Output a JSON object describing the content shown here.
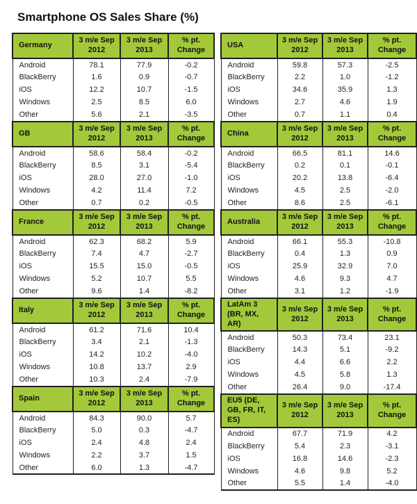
{
  "colors": {
    "header_green": "#a3c93a",
    "border": "#1f1f1f",
    "text": "#222222",
    "background": "#ffffff"
  },
  "chart_data": {
    "type": "table",
    "title": "Smartphone OS Sales Share (%)",
    "column_headers": [
      "3 m/e Sep\n2012",
      "3 m/e Sep\n2013",
      "% pt.\nChange"
    ],
    "row_labels": [
      "Android",
      "BlackBerry",
      "iOS",
      "Windows",
      "Other"
    ],
    "layout_note": "ten region tables, two columns: left = Germany/GB/France/Italy/Spain, right = USA/China/Australia/LatAm 3/EU5",
    "tables": [
      {
        "region": "Germany",
        "side": "left",
        "values": [
          [
            "78.1",
            "77.9",
            "-0.2"
          ],
          [
            "1.6",
            "0.9",
            "-0.7"
          ],
          [
            "12.2",
            "10.7",
            "-1.5"
          ],
          [
            "2.5",
            "8.5",
            "6.0"
          ],
          [
            "5.6",
            "2.1",
            "-3.5"
          ]
        ]
      },
      {
        "region": "GB",
        "side": "left",
        "values": [
          [
            "58.6",
            "58.4",
            "-0.2"
          ],
          [
            "8.5",
            "3.1",
            "-5.4"
          ],
          [
            "28.0",
            "27.0",
            "-1.0"
          ],
          [
            "4.2",
            "11.4",
            "7.2"
          ],
          [
            "0.7",
            "0.2",
            "-0.5"
          ]
        ]
      },
      {
        "region": "France",
        "side": "left",
        "values": [
          [
            "62.3",
            "68.2",
            "5.9"
          ],
          [
            "7.4",
            "4.7",
            "-2.7"
          ],
          [
            "15.5",
            "15.0",
            "-0.5"
          ],
          [
            "5.2",
            "10.7",
            "5.5"
          ],
          [
            "9.6",
            "1.4",
            "-8.2"
          ]
        ]
      },
      {
        "region": "Italy",
        "side": "left",
        "values": [
          [
            "61.2",
            "71.6",
            "10.4"
          ],
          [
            "3.4",
            "2.1",
            "-1.3"
          ],
          [
            "14.2",
            "10.2",
            "-4.0"
          ],
          [
            "10.8",
            "13.7",
            "2.9"
          ],
          [
            "10.3",
            "2.4",
            "-7.9"
          ]
        ]
      },
      {
        "region": "Spain",
        "side": "left",
        "values": [
          [
            "84.3",
            "90.0",
            "5.7"
          ],
          [
            "5.0",
            "0.3",
            "-4.7"
          ],
          [
            "2.4",
            "4.8",
            "2.4"
          ],
          [
            "2.2",
            "3.7",
            "1.5"
          ],
          [
            "6.0",
            "1.3",
            "-4.7"
          ]
        ]
      },
      {
        "region": "USA",
        "side": "right",
        "values": [
          [
            "59.8",
            "57.3",
            "-2.5"
          ],
          [
            "2.2",
            "1.0",
            "-1.2"
          ],
          [
            "34.6",
            "35.9",
            "1.3"
          ],
          [
            "2.7",
            "4.6",
            "1.9"
          ],
          [
            "0.7",
            "1.1",
            "0.4"
          ]
        ]
      },
      {
        "region": "China",
        "side": "right",
        "values": [
          [
            "66.5",
            "81.1",
            "14.6"
          ],
          [
            "0.2",
            "0.1",
            "-0.1"
          ],
          [
            "20.2",
            "13.8",
            "-6.4"
          ],
          [
            "4.5",
            "2.5",
            "-2.0"
          ],
          [
            "8.6",
            "2.5",
            "-6.1"
          ]
        ]
      },
      {
        "region": "Australia",
        "side": "right",
        "values": [
          [
            "66.1",
            "55.3",
            "-10.8"
          ],
          [
            "0.4",
            "1.3",
            "0.9"
          ],
          [
            "25.9",
            "32.9",
            "7.0"
          ],
          [
            "4.6",
            "9.3",
            "4.7"
          ],
          [
            "3.1",
            "1.2",
            "-1.9"
          ]
        ]
      },
      {
        "region": "LatAm 3 (BR, MX, AR)",
        "side": "right",
        "values": [
          [
            "50.3",
            "73.4",
            "23.1"
          ],
          [
            "14.3",
            "5.1",
            "-9.2"
          ],
          [
            "4.4",
            "6.6",
            "2.2"
          ],
          [
            "4.5",
            "5.8",
            "1.3"
          ],
          [
            "26.4",
            "9.0",
            "-17.4"
          ]
        ]
      },
      {
        "region": "EU5 (DE, GB, FR, IT, ES)",
        "side": "right",
        "values": [
          [
            "67.7",
            "71.9",
            "4.2"
          ],
          [
            "5.4",
            "2.3",
            "-3.1"
          ],
          [
            "16.8",
            "14.6",
            "-2.3"
          ],
          [
            "4.6",
            "9.8",
            "5.2"
          ],
          [
            "5.5",
            "1.4",
            "-4.0"
          ]
        ]
      }
    ]
  }
}
